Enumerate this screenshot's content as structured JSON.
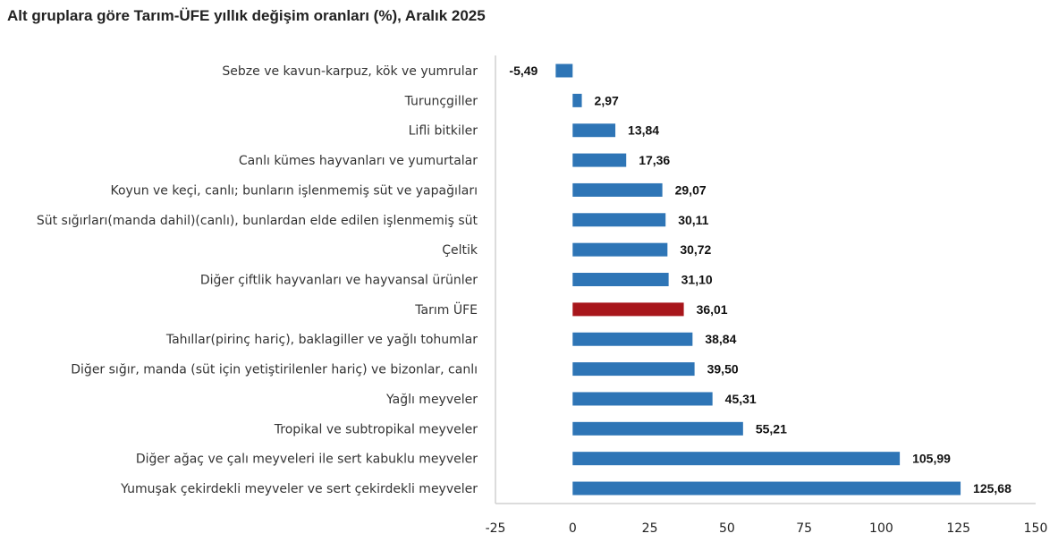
{
  "chart_data": {
    "type": "bar",
    "orientation": "horizontal",
    "title": "Alt gruplara göre Tarım-ÜFE yıllık değişim oranları (%), Aralık 2025",
    "categories": [
      "Sebze ve kavun-karpuz, kök ve yumrular",
      "Turunçgiller",
      "Lifli bitkiler",
      "Canlı kümes hayvanları ve yumurtalar",
      "Koyun ve keçi, canlı; bunların işlenmemiş süt ve yapağıları",
      "Süt sığırları(manda dahil)(canlı), bunlardan elde edilen işlenmemiş süt",
      "Çeltik",
      "Diğer çiftlik hayvanları ve hayvansal ürünler",
      "Tarım ÜFE",
      "Tahıllar(pirinç hariç), baklagiller ve yağlı tohumlar",
      "Diğer sığır, manda (süt için yetiştirilenler hariç) ve bizonlar, canlı",
      "Yağlı meyveler",
      "Tropikal ve subtropikal meyveler",
      "Diğer ağaç ve çalı meyveleri ile sert kabuklu meyveler",
      "Yumuşak çekirdekli meyveler ve sert çekirdekli meyveler"
    ],
    "values": [
      -5.49,
      2.97,
      13.84,
      17.36,
      29.07,
      30.11,
      30.72,
      31.1,
      36.01,
      38.84,
      39.5,
      45.31,
      55.21,
      105.99,
      125.68
    ],
    "value_labels": [
      "-5,49",
      "2,97",
      "13,84",
      "17,36",
      "29,07",
      "30,11",
      "30,72",
      "31,10",
      "36,01",
      "38,84",
      "39,50",
      "45,31",
      "55,21",
      "105,99",
      "125,68"
    ],
    "highlight_index": 8,
    "xlim": [
      -25,
      150
    ],
    "xticks": [
      -25,
      0,
      25,
      50,
      75,
      100,
      125,
      150
    ],
    "xtick_labels": [
      "-25",
      "0",
      "25",
      "50",
      "75",
      "100",
      "125",
      "150"
    ],
    "xlabel": "",
    "ylabel": "",
    "grid": false,
    "colors": {
      "bar": "#2e75b6",
      "highlight": "#a8161b",
      "axis": "#d0d0d0"
    }
  }
}
